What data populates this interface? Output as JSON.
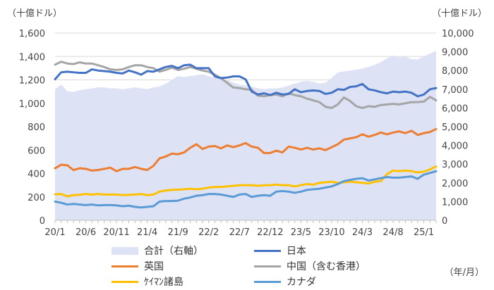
{
  "chart_data": {
    "type": "line+area",
    "title": "",
    "left_axis_unit": "（十億ドル）",
    "right_axis_unit": "（十億ドル）",
    "period_unit": "（年/月）",
    "ylim_left": [
      0,
      1600
    ],
    "ylim_right": [
      0,
      10000
    ],
    "left_ticks": [
      "0",
      "200",
      "400",
      "600",
      "800",
      "1,000",
      "1,200",
      "1,400",
      "1,600"
    ],
    "right_ticks": [
      "0",
      "1,000",
      "2,000",
      "3,000",
      "4,000",
      "5,000",
      "6,000",
      "7,000",
      "8,000",
      "9,000",
      "10,000"
    ],
    "x_labels": [
      "20/1",
      "20/6",
      "20/11",
      "21/4",
      "21/9",
      "22/2",
      "22/7",
      "22/12",
      "23/5",
      "23/10",
      "24/3",
      "24/8",
      "25/1"
    ],
    "x_label_positions": [
      0,
      5,
      10,
      15,
      20,
      25,
      30,
      35,
      40,
      45,
      50,
      55,
      60
    ],
    "n_points": 63,
    "start_month": "2020/1",
    "area_series": {
      "name": "合計（右軸）",
      "axis": "right",
      "color": "#dde3f5",
      "values": [
        7000,
        7250,
        6900,
        6850,
        6950,
        7000,
        7050,
        7100,
        7100,
        7050,
        7050,
        7000,
        7050,
        7100,
        7050,
        7000,
        7100,
        7150,
        7300,
        7500,
        7700,
        7650,
        7700,
        7750,
        7800,
        7700,
        7600,
        7550,
        7500,
        7350,
        7250,
        7200,
        7150,
        7050,
        7000,
        7050,
        7050,
        7100,
        7200,
        7300,
        7400,
        7450,
        7400,
        7300,
        7350,
        7600,
        7900,
        7950,
        8000,
        8050,
        8100,
        8200,
        8300,
        8450,
        8650,
        8800,
        8700,
        8750,
        8600,
        8600,
        8750,
        8900,
        9050
      ]
    },
    "series": [
      {
        "name": "日本",
        "axis": "left",
        "color": "#4472c4",
        "values": [
          1205,
          1265,
          1270,
          1265,
          1260,
          1260,
          1290,
          1280,
          1275,
          1270,
          1260,
          1255,
          1280,
          1265,
          1245,
          1275,
          1270,
          1290,
          1310,
          1320,
          1300,
          1325,
          1330,
          1300,
          1300,
          1300,
          1230,
          1215,
          1220,
          1230,
          1230,
          1205,
          1100,
          1075,
          1085,
          1070,
          1090,
          1075,
          1080,
          1120,
          1095,
          1105,
          1110,
          1105,
          1080,
          1090,
          1120,
          1115,
          1140,
          1145,
          1165,
          1120,
          1110,
          1095,
          1085,
          1100,
          1095,
          1100,
          1090,
          1060,
          1075,
          1120,
          1130
        ]
      },
      {
        "name": "英国",
        "axis": "left",
        "color": "#ed7d31",
        "values": [
          445,
          475,
          470,
          430,
          445,
          440,
          425,
          430,
          440,
          450,
          420,
          440,
          440,
          455,
          440,
          430,
          465,
          530,
          545,
          570,
          565,
          580,
          620,
          650,
          610,
          630,
          635,
          615,
          640,
          625,
          640,
          660,
          630,
          620,
          575,
          575,
          595,
          580,
          630,
          620,
          605,
          620,
          605,
          615,
          600,
          625,
          650,
          690,
          700,
          710,
          735,
          715,
          730,
          750,
          735,
          750,
          760,
          745,
          765,
          730,
          745,
          755,
          780
        ]
      },
      {
        "name": "中国（含む香港）",
        "axis": "left",
        "color": "#a5a5a5",
        "values": [
          1330,
          1355,
          1340,
          1335,
          1350,
          1340,
          1340,
          1325,
          1310,
          1290,
          1285,
          1290,
          1310,
          1325,
          1325,
          1310,
          1300,
          1270,
          1285,
          1305,
          1285,
          1295,
          1310,
          1295,
          1280,
          1270,
          1245,
          1215,
          1175,
          1135,
          1130,
          1120,
          1115,
          1065,
          1060,
          1070,
          1075,
          1060,
          1085,
          1070,
          1060,
          1040,
          1025,
          1010,
          970,
          960,
          990,
          1050,
          1020,
          975,
          960,
          975,
          970,
          985,
          990,
          995,
          990,
          1000,
          1010,
          1010,
          1015,
          1055,
          1025
        ]
      },
      {
        "name": "ｹｲﾏﾝ諸島",
        "axis": "left",
        "color": "#ffc000",
        "values": [
          222,
          225,
          205,
          215,
          218,
          225,
          220,
          225,
          220,
          220,
          220,
          215,
          218,
          220,
          225,
          215,
          220,
          245,
          255,
          260,
          262,
          265,
          270,
          265,
          270,
          280,
          285,
          285,
          290,
          295,
          300,
          300,
          300,
          295,
          300,
          300,
          305,
          300,
          300,
          290,
          300,
          310,
          305,
          320,
          325,
          330,
          320,
          325,
          330,
          325,
          320,
          315,
          330,
          335,
          395,
          425,
          420,
          425,
          420,
          410,
          415,
          435,
          460
        ]
      },
      {
        "name": "カナダ",
        "axis": "left",
        "color": "#5b9bd5",
        "values": [
          160,
          150,
          135,
          140,
          135,
          130,
          135,
          128,
          130,
          130,
          128,
          120,
          125,
          115,
          110,
          115,
          120,
          160,
          165,
          165,
          168,
          185,
          195,
          210,
          215,
          225,
          225,
          220,
          210,
          200,
          220,
          225,
          200,
          210,
          215,
          210,
          245,
          250,
          245,
          235,
          245,
          260,
          265,
          270,
          280,
          290,
          310,
          335,
          345,
          355,
          360,
          340,
          350,
          360,
          370,
          365,
          365,
          370,
          375,
          355,
          390,
          405,
          420
        ]
      }
    ],
    "legend": [
      {
        "name": "合計（右軸）",
        "kind": "area",
        "color": "#dde3f5"
      },
      {
        "name": "日本",
        "kind": "line",
        "color": "#4472c4"
      },
      {
        "name": "英国",
        "kind": "line",
        "color": "#ed7d31"
      },
      {
        "name": "中国（含む香港）",
        "kind": "line",
        "color": "#a5a5a5"
      },
      {
        "name": "ｹｲﾏﾝ諸島",
        "kind": "line",
        "color": "#ffc000"
      },
      {
        "name": "カナダ",
        "kind": "line",
        "color": "#5b9bd5"
      }
    ]
  }
}
